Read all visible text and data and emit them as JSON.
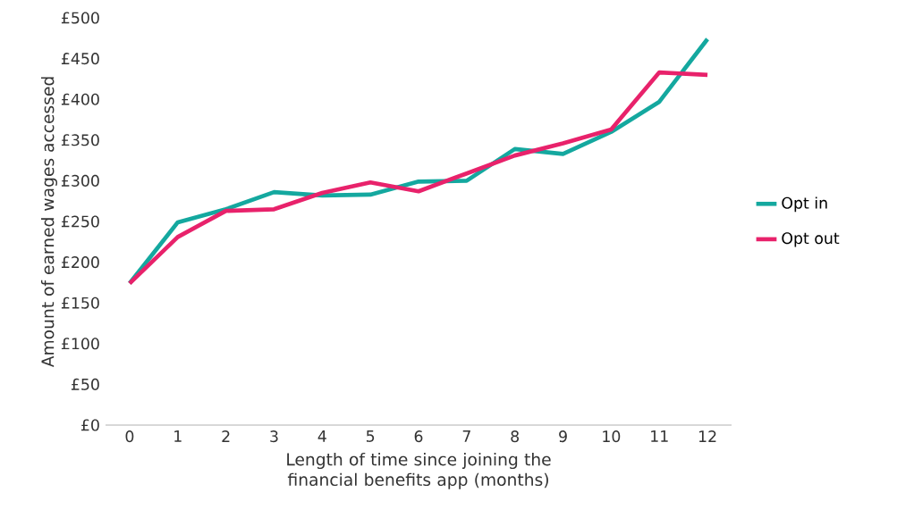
{
  "chart_data": {
    "type": "line",
    "xlabel": "Length of time since joining the financial benefits app (months)",
    "ylabel": "Amount of earned wages accessed",
    "categories": [
      "0",
      "1",
      "2",
      "3",
      "4",
      "5",
      "6",
      "7",
      "8",
      "9",
      "10",
      "11",
      "12"
    ],
    "series": [
      {
        "name": "Opt in",
        "color": "#14a89f",
        "values": [
          174,
          249,
          265,
          286,
          282,
          283,
          299,
          300,
          339,
          333,
          360,
          397,
          474
        ]
      },
      {
        "name": "Opt out",
        "color": "#e8226b",
        "values": [
          174,
          231,
          263,
          265,
          285,
          298,
          287,
          309,
          331,
          346,
          363,
          433,
          430
        ]
      }
    ],
    "ylim": [
      0,
      500
    ],
    "yticks": [
      {
        "value": 0,
        "label": "£0"
      },
      {
        "value": 50,
        "label": "£50"
      },
      {
        "value": 100,
        "label": "£100"
      },
      {
        "value": 150,
        "label": "£150"
      },
      {
        "value": 200,
        "label": "£200"
      },
      {
        "value": 250,
        "label": "£250"
      },
      {
        "value": 300,
        "label": "£300"
      },
      {
        "value": 350,
        "label": "£350"
      },
      {
        "value": 400,
        "label": "£400"
      },
      {
        "value": 450,
        "label": "£450"
      },
      {
        "value": 500,
        "label": "£500"
      }
    ],
    "legend": "right",
    "grid": false,
    "marker": "none",
    "line_style": "solid"
  }
}
